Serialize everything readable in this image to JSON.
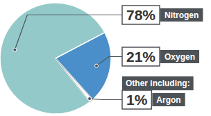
{
  "chart_data": {
    "type": "pie",
    "categories": [
      "Nitrogen",
      "Oxygen",
      "Argon"
    ],
    "values": [
      78,
      21,
      1
    ],
    "value_labels": [
      "78%",
      "21%",
      "1%"
    ],
    "colors": [
      "#93c9c9",
      "#4a8fc9",
      "#ffffff"
    ],
    "annotations": [
      "Other including:"
    ],
    "data_labels": true
  }
}
